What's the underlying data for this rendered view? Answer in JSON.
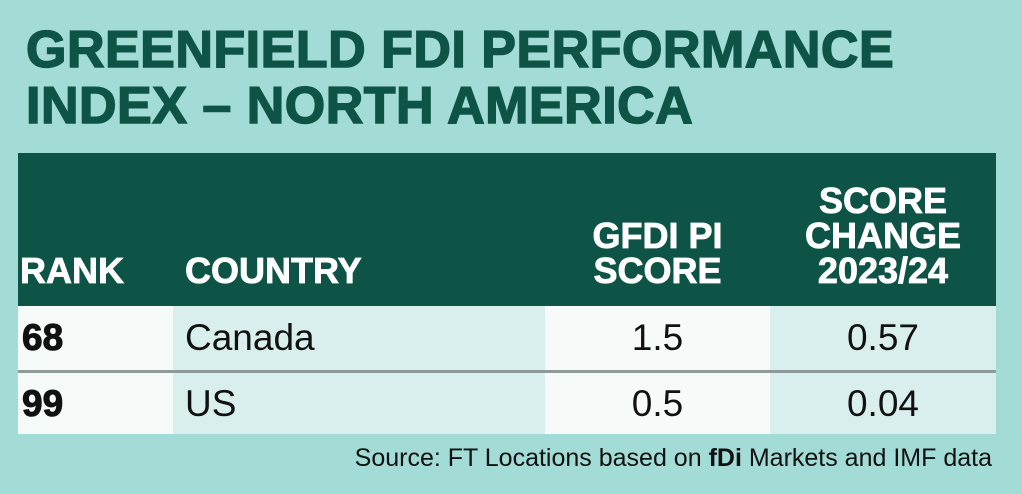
{
  "chart_data": {
    "type": "table",
    "title_lines": [
      "GREENFIELD FDI PERFORMANCE",
      "INDEX – NORTH AMERICA"
    ],
    "columns": [
      "RANK",
      "COUNTRY",
      "GFDI PI\nSCORE",
      "SCORE\nCHANGE\n2023/24"
    ],
    "rows": [
      {
        "rank": "68",
        "country": "Canada",
        "score": "1.5",
        "change": "0.57"
      },
      {
        "rank": "99",
        "country": "US",
        "score": "0.5",
        "change": "0.04"
      }
    ]
  },
  "source": {
    "prefix": "Source: FT Locations based on ",
    "brand": "fDi",
    "suffix": " Markets and IMF data"
  },
  "colors": {
    "background": "#a3dcd6",
    "header": "#0e5446",
    "row_light": "#d9efed",
    "row_white": "#f6faf9"
  }
}
